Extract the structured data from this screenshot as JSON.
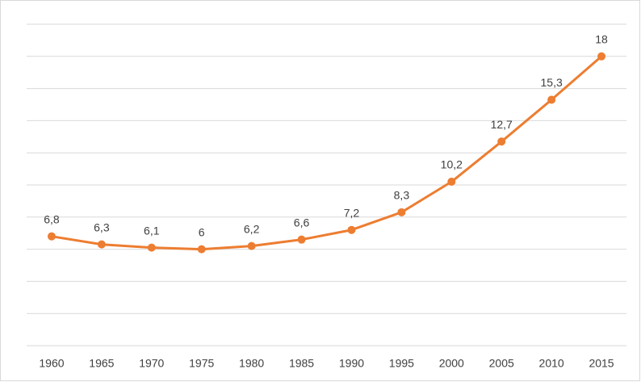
{
  "chart_data": {
    "type": "line",
    "categories": [
      "1960",
      "1965",
      "1970",
      "1975",
      "1980",
      "1985",
      "1990",
      "1995",
      "2000",
      "2005",
      "2010",
      "2015"
    ],
    "values": [
      6.8,
      6.3,
      6.1,
      6,
      6.2,
      6.6,
      7.2,
      8.3,
      10.2,
      12.7,
      15.3,
      18
    ],
    "value_labels": [
      "6,8",
      "6,3",
      "6,1",
      "6",
      "6,2",
      "6,6",
      "7,2",
      "8,3",
      "10,2",
      "12,7",
      "15,3",
      "18"
    ],
    "color": "#ed7d31",
    "ylim": [
      0,
      20
    ],
    "yticks": [
      0,
      2,
      4,
      6,
      8,
      10,
      12,
      14,
      16,
      18,
      20
    ],
    "grid": true
  }
}
